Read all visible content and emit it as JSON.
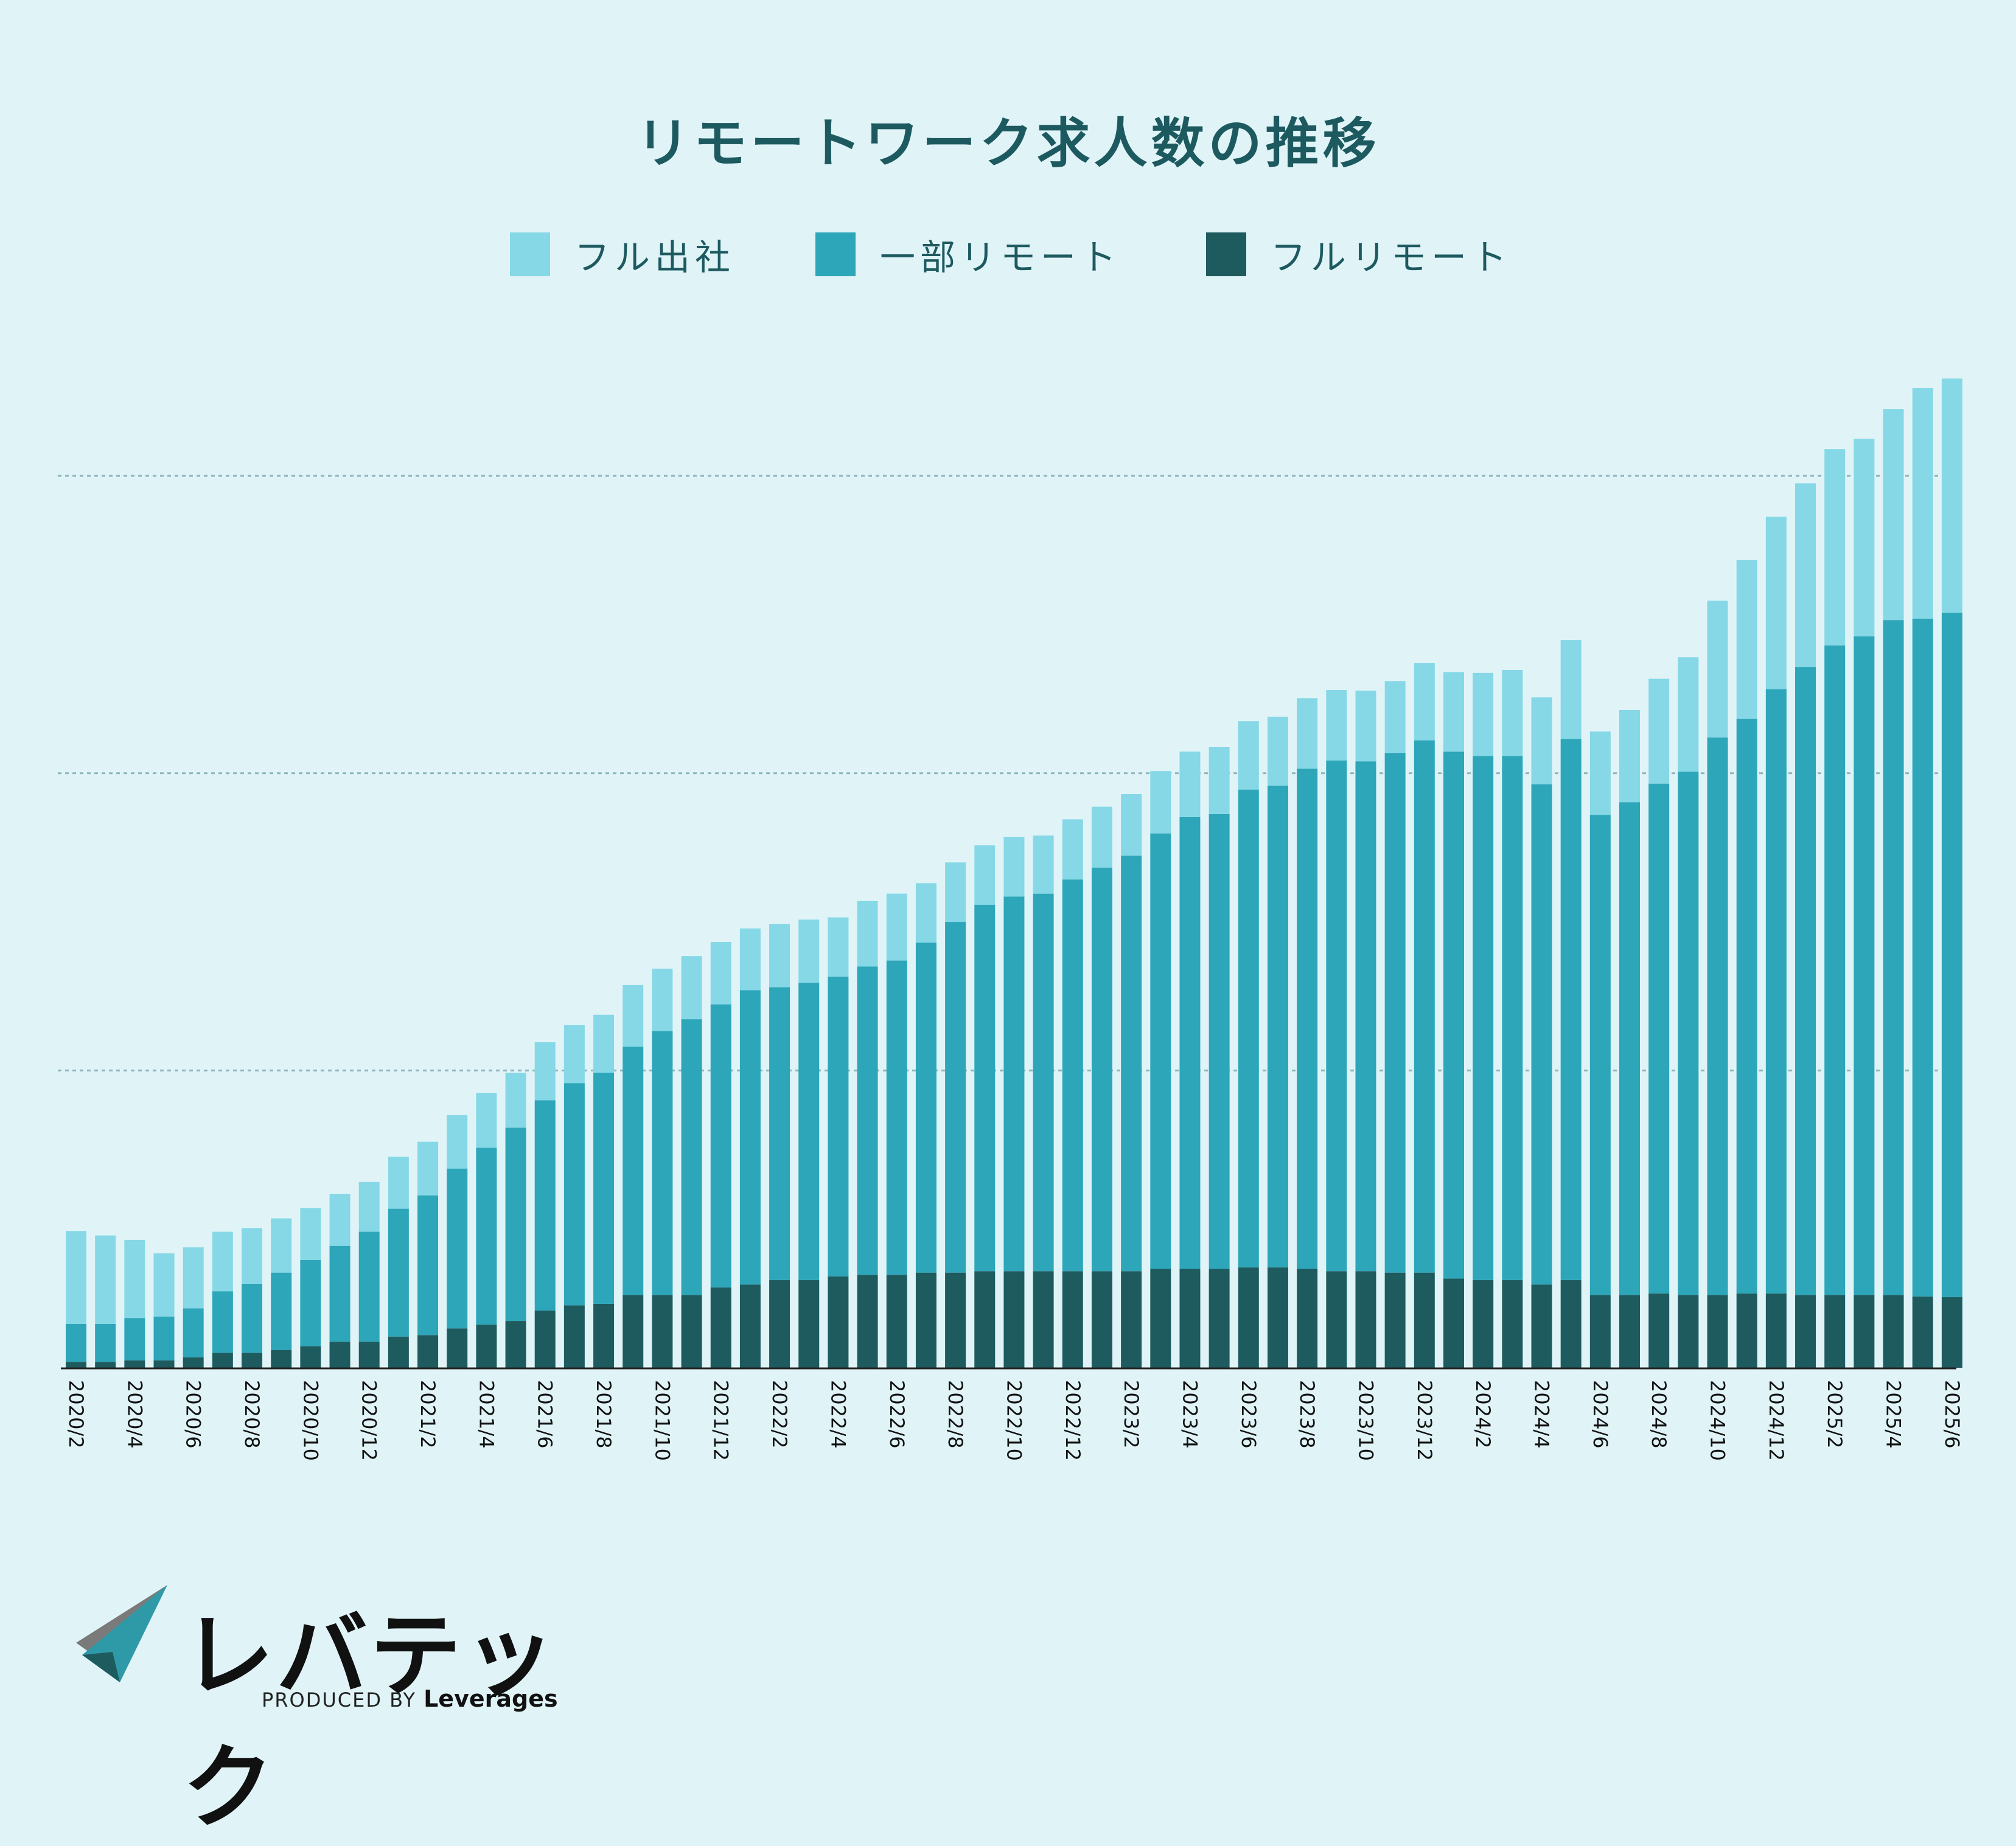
{
  "chart_data": {
    "type": "stacked_bar",
    "title": "リモートワーク求人数の推移",
    "xlabel": "",
    "ylabel": "",
    "ylim": [
      0,
      130
    ],
    "grid": true,
    "legend_position": "top-center",
    "categories": [
      "2020/2",
      "2020/3",
      "2020/4",
      "2020/5",
      "2020/6",
      "2020/7",
      "2020/8",
      "2020/9",
      "2020/10",
      "2020/11",
      "2020/12",
      "2021/1",
      "2021/2",
      "2021/3",
      "2021/4",
      "2021/5",
      "2021/6",
      "2021/7",
      "2021/8",
      "2021/9",
      "2021/10",
      "2021/11",
      "2021/12",
      "2022/1",
      "2022/2",
      "2022/3",
      "2022/4",
      "2022/5",
      "2022/6",
      "2022/7",
      "2022/8",
      "2022/9",
      "2022/10",
      "2022/11",
      "2022/12",
      "2023/1",
      "2023/2",
      "2023/3",
      "2023/4",
      "2023/5",
      "2023/6",
      "2023/7",
      "2023/8",
      "2023/9",
      "2023/10",
      "2023/11",
      "2023/12",
      "2024/1",
      "2024/2",
      "2024/3",
      "2024/4",
      "2024/5",
      "2024/6",
      "2024/7",
      "2024/8",
      "2024/9",
      "2024/10",
      "2024/11",
      "2024/12",
      "2025/1",
      "2025/2",
      "2025/3",
      "2025/4",
      "2025/5",
      "2025/6"
    ],
    "tick_labels": [
      "2020/2",
      "2020/4",
      "2020/6",
      "2020/8",
      "2020/10",
      "2020/12",
      "2021/2",
      "2021/4",
      "2021/6",
      "2021/8",
      "2021/10",
      "2021/12",
      "2022/2",
      "2022/4",
      "2022/6",
      "2022/8",
      "2022/10",
      "2022/12",
      "2023/2",
      "2023/4",
      "2023/6",
      "2023/8",
      "2023/10",
      "2023/12",
      "2024/2",
      "2024/4",
      "2024/6",
      "2024/8",
      "2024/10",
      "2024/12",
      "2025/2",
      "2025/4",
      "2025/6"
    ],
    "series": [
      {
        "name": "フルリモート",
        "color": "#1e5b5f",
        "values": [
          0.8,
          0.8,
          1.0,
          1.0,
          1.4,
          2.0,
          2.0,
          2.4,
          2.9,
          3.5,
          3.5,
          4.2,
          4.4,
          5.3,
          5.8,
          6.3,
          7.7,
          8.4,
          8.6,
          9.8,
          9.8,
          9.8,
          10.8,
          11.2,
          11.8,
          11.8,
          12.3,
          12.5,
          12.5,
          12.8,
          12.8,
          13.0,
          13.0,
          13.0,
          13.0,
          13.0,
          13.0,
          13.3,
          13.3,
          13.3,
          13.5,
          13.5,
          13.3,
          13.0,
          13.0,
          12.8,
          12.8,
          12.0,
          11.8,
          11.8,
          11.2,
          11.8,
          9.8,
          9.8,
          10.0,
          9.8,
          9.8,
          10.0,
          10.0,
          9.8,
          9.8,
          9.8,
          9.8,
          9.6,
          9.5
        ]
      },
      {
        "name": "一部リモート",
        "color": "#2da6b9",
        "values": [
          5.1,
          5.1,
          5.7,
          5.9,
          6.6,
          8.3,
          9.3,
          10.4,
          11.6,
          12.9,
          14.8,
          17.2,
          18.8,
          21.5,
          23.8,
          26.0,
          28.3,
          29.9,
          31.1,
          33.4,
          35.5,
          37.1,
          38.1,
          39.6,
          39.4,
          40.0,
          40.3,
          41.5,
          42.3,
          44.4,
          47.2,
          49.3,
          50.4,
          50.8,
          52.7,
          54.3,
          55.9,
          58.6,
          60.8,
          61.2,
          64.3,
          64.8,
          67.3,
          68.7,
          68.6,
          69.9,
          71.6,
          70.9,
          70.5,
          70.5,
          67.3,
          72.8,
          64.6,
          66.3,
          68.6,
          70.4,
          75.0,
          77.3,
          81.3,
          84.5,
          87.4,
          88.6,
          90.8,
          91.2,
          92.1
        ]
      },
      {
        "name": "フル出社",
        "color": "#86d8e6",
        "values": [
          12.5,
          11.9,
          10.5,
          8.5,
          8.2,
          8.0,
          7.5,
          7.3,
          7.0,
          7.0,
          6.7,
          7.0,
          7.2,
          7.2,
          7.4,
          7.4,
          7.8,
          7.8,
          7.8,
          8.3,
          8.4,
          8.5,
          8.4,
          8.3,
          8.5,
          8.5,
          8.0,
          8.8,
          9.0,
          8.0,
          8.0,
          8.0,
          8.0,
          7.8,
          8.1,
          8.2,
          8.3,
          8.4,
          8.8,
          9.0,
          9.2,
          9.3,
          9.5,
          9.5,
          9.5,
          9.7,
          10.4,
          10.7,
          11.2,
          11.6,
          11.7,
          13.3,
          11.2,
          12.4,
          14.1,
          15.4,
          18.4,
          21.4,
          23.2,
          24.7,
          26.4,
          26.6,
          28.4,
          31.0,
          31.5
        ]
      }
    ]
  },
  "logo": {
    "name": "レバテック",
    "tagline": "PRODUCED BY",
    "company": "Leverages"
  }
}
